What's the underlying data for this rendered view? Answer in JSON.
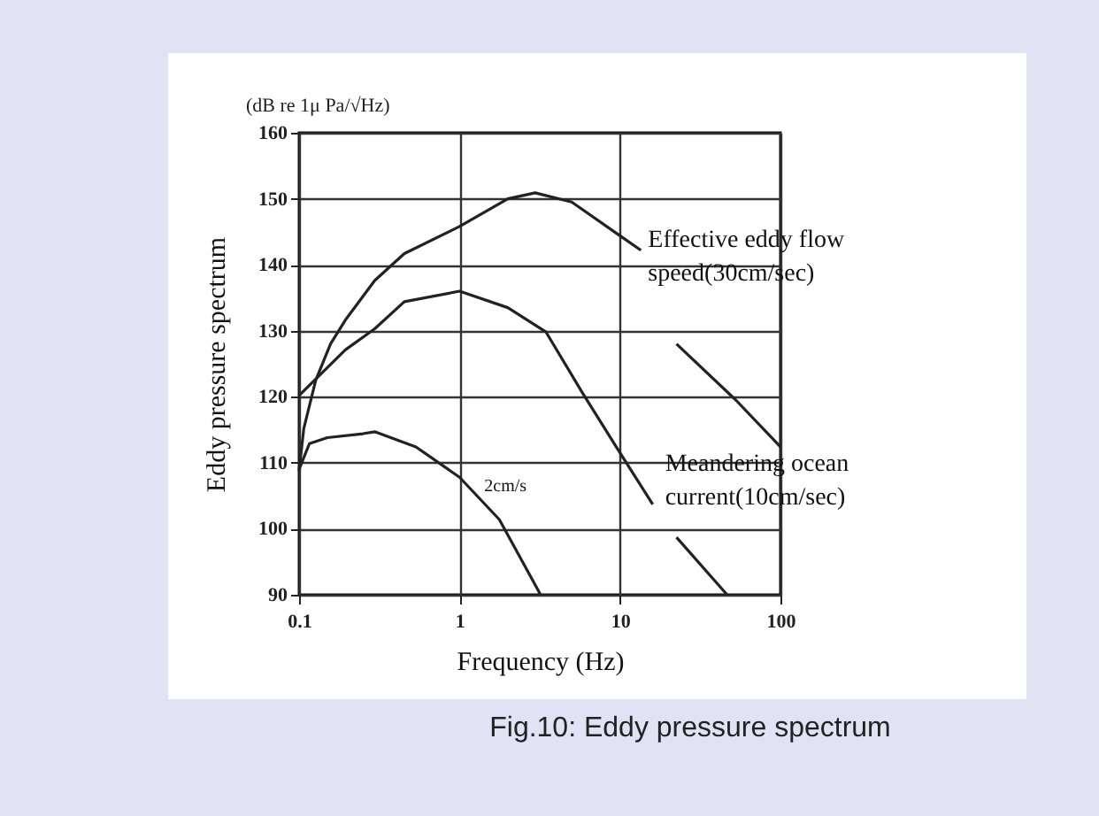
{
  "chart_data": {
    "type": "line",
    "title": "Fig.10: Eddy pressure spectrum",
    "xlabel": "Frequency (Hz)",
    "ylabel": "Eddy pressure spectrum",
    "annotations": [
      "(dB re 1μ Pa/√Hz)"
    ],
    "log": "x",
    "xlim": [
      0.1,
      100
    ],
    "xticks": [
      0.1,
      1,
      10,
      100
    ],
    "ylim": [
      90,
      160
    ],
    "yticks": [
      90,
      100,
      110,
      120,
      130,
      140,
      150,
      160
    ],
    "grid": true,
    "legend": false,
    "series": [
      {
        "name": "Effective eddy flow speed(30cm/sec)",
        "color": "#222222",
        "x": [
          0.1,
          0.107,
          0.127,
          0.157,
          0.194,
          0.296,
          0.453,
          1,
          2,
          2.96,
          5,
          10,
          13.5,
          17,
          22.5,
          52.7,
          100
        ],
        "values": [
          108.8,
          115.2,
          122.5,
          128,
          131.6,
          137.6,
          141.7,
          145.8,
          150,
          150.9,
          149.5,
          144.4,
          142.2,
          null,
          128,
          119.5,
          112.4
        ]
      },
      {
        "name": "Meandering ocean current(10cm/sec)",
        "color": "#222222",
        "x": [
          0.1,
          0.194,
          0.296,
          0.453,
          1,
          2,
          3.46,
          5.8,
          10,
          16,
          19,
          22.5,
          46.5
        ],
        "values": [
          120.2,
          127.1,
          130.3,
          134.4,
          136,
          133.5,
          129.8,
          120.7,
          111.5,
          103.7,
          null,
          98.7,
          90
        ]
      },
      {
        "name": "2cm/s",
        "color": "#222222",
        "x": [
          0.1,
          0.116,
          0.15,
          0.25,
          0.296,
          0.535,
          1,
          1.77,
          3.2
        ],
        "values": [
          109,
          112.9,
          113.8,
          114.4,
          114.7,
          112.4,
          107.8,
          101.4,
          90
        ]
      }
    ]
  }
}
